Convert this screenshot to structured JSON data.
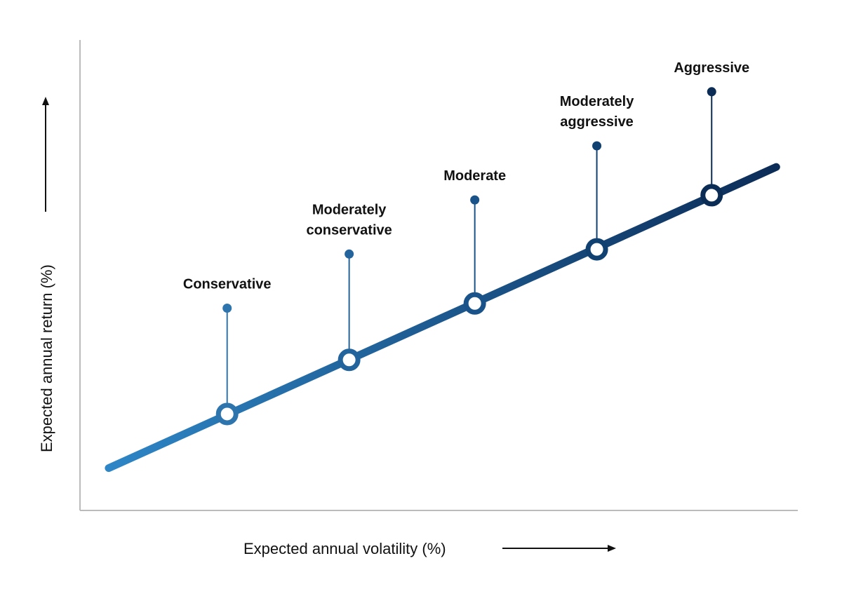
{
  "chart_data": {
    "type": "line",
    "title": "",
    "xlabel": "Expected annual volatility (%)",
    "ylabel": "Expected annual return (%)",
    "xlim": [
      0,
      10
    ],
    "ylim": [
      0,
      10
    ],
    "x_ticks_shown": false,
    "y_ticks_shown": false,
    "grid": false,
    "line": {
      "x": [
        0.4,
        9.7
      ],
      "y": [
        0.9,
        7.3
      ]
    },
    "points": [
      {
        "label_lines": [
          "Conservative"
        ],
        "x": 2.05,
        "y": 2.05,
        "marker_y": 4.3
      },
      {
        "label_lines": [
          "Moderately",
          "conservative"
        ],
        "x": 3.75,
        "y": 3.2,
        "marker_y": 5.45
      },
      {
        "label_lines": [
          "Moderate"
        ],
        "x": 5.5,
        "y": 4.4,
        "marker_y": 6.6
      },
      {
        "label_lines": [
          "Moderately",
          "aggressive"
        ],
        "x": 7.2,
        "y": 5.55,
        "marker_y": 7.75
      },
      {
        "label_lines": [
          "Aggressive"
        ],
        "x": 8.8,
        "y": 6.7,
        "marker_y": 8.9
      }
    ],
    "colors": {
      "line_start": "#2e86c6",
      "line_end": "#0c2c57",
      "points": [
        "#2e75ae",
        "#23649c",
        "#1a5389",
        "#114171",
        "#0b2d55"
      ],
      "axis": "#bbbbbb",
      "text": "#111111"
    }
  }
}
